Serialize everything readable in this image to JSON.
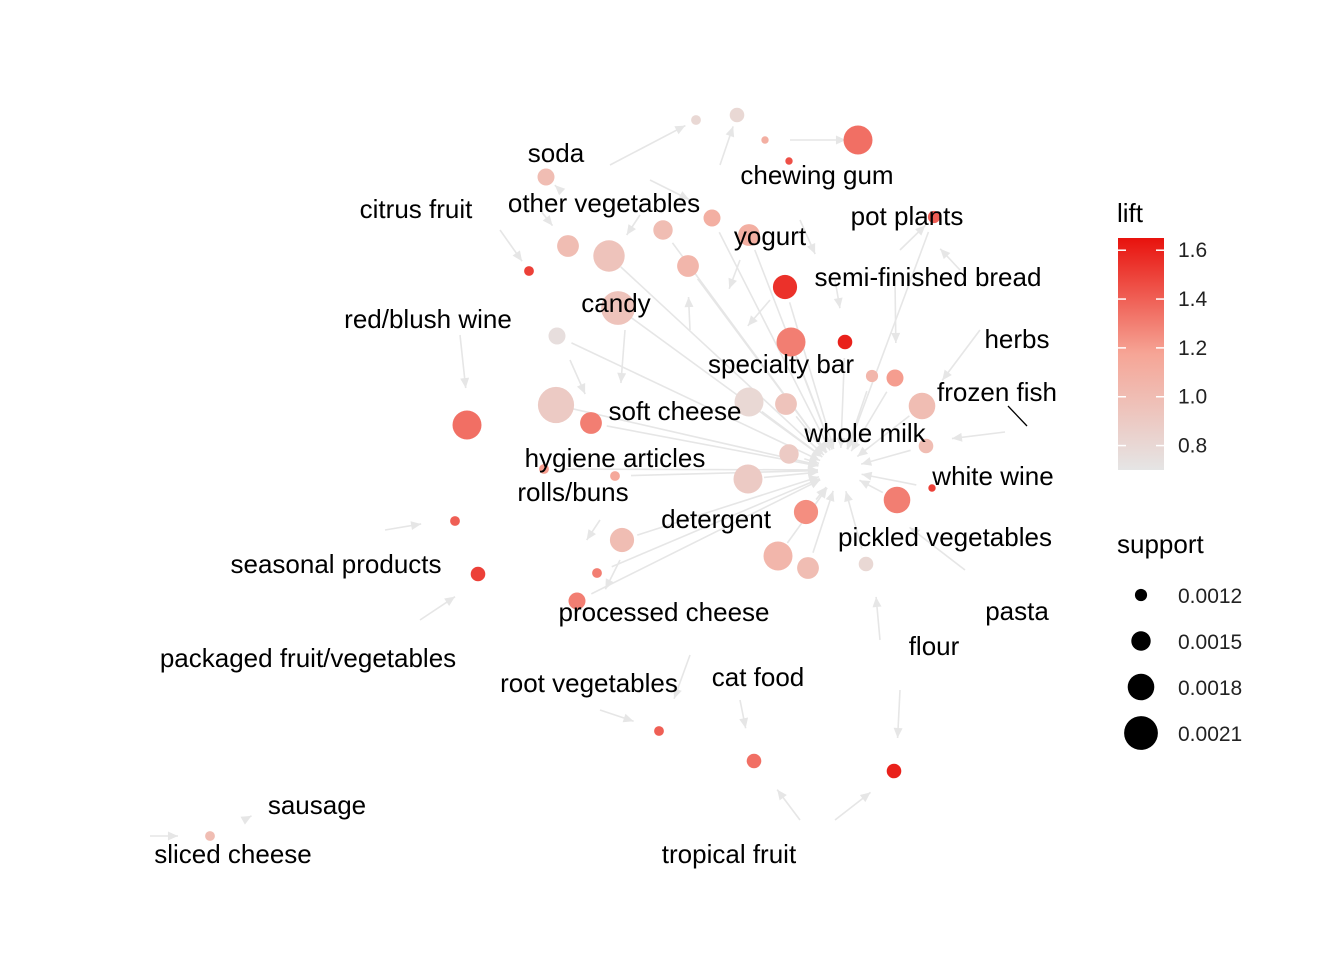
{
  "colors": {
    "lift_high": "#e8120d",
    "lift_mid": "#f6a596",
    "lift_low": "#e5e5e5",
    "edge": "#e6e6e6",
    "support_key": "#000000"
  },
  "graph": {
    "layout": "stress",
    "edge_style": "arrows",
    "item_labels": [
      "soda",
      "chewing gum",
      "citrus fruit",
      "other vegetables",
      "pot plants",
      "yogurt",
      "semi-finished bread",
      "candy",
      "red/blush wine",
      "herbs",
      "specialty bar",
      "frozen fish",
      "soft cheese",
      "whole milk",
      "hygiene articles",
      "white wine",
      "rolls/buns",
      "detergent",
      "pickled vegetables",
      "seasonal products",
      "processed cheese",
      "pasta",
      "flour",
      "packaged fruit/vegetables",
      "root vegetables",
      "cat food",
      "sausage",
      "sliced cheese",
      "tropical fruit"
    ],
    "rule_nodes": [
      {
        "lift": 0.8,
        "support": 0.0011
      },
      {
        "lift": 0.8,
        "support": 0.0013
      },
      {
        "lift": 1.35,
        "support": 0.0019
      },
      {
        "lift": 1.0,
        "support": 0.0014
      },
      {
        "lift": 1.4,
        "support": 0.0012
      },
      {
        "lift": 1.1,
        "support": 0.0014
      },
      {
        "lift": 1.0,
        "support": 0.0015
      },
      {
        "lift": 1.0,
        "support": 0.0016
      },
      {
        "lift": 0.95,
        "support": 0.002
      },
      {
        "lift": 1.1,
        "support": 0.0016
      },
      {
        "lift": 1.05,
        "support": 0.0016
      },
      {
        "lift": 1.5,
        "support": 0.0011
      },
      {
        "lift": 1.55,
        "support": 0.0017
      },
      {
        "lift": 0.95,
        "support": 0.0021
      },
      {
        "lift": 1.6,
        "support": 0.0013
      },
      {
        "lift": 1.3,
        "support": 0.0019
      },
      {
        "lift": 0.75,
        "support": 0.0014
      },
      {
        "lift": 1.2,
        "support": 0.0014
      },
      {
        "lift": 1.05,
        "support": 0.0012
      },
      {
        "lift": 1.0,
        "support": 0.0018
      },
      {
        "lift": 0.9,
        "support": 0.0022
      },
      {
        "lift": 0.8,
        "support": 0.0019
      },
      {
        "lift": 0.95,
        "support": 0.0016
      },
      {
        "lift": 1.3,
        "support": 0.0016
      },
      {
        "lift": 1.0,
        "support": 0.0013
      },
      {
        "lift": 0.9,
        "support": 0.0015
      },
      {
        "lift": 1.15,
        "support": 0.0011
      },
      {
        "lift": 0.9,
        "support": 0.0019
      },
      {
        "lift": 1.2,
        "support": 0.0011
      },
      {
        "lift": 1.3,
        "support": 0.0018
      },
      {
        "lift": 1.4,
        "support": 0.0011
      },
      {
        "lift": 1.25,
        "support": 0.0017
      },
      {
        "lift": 1.35,
        "support": 0.0019
      },
      {
        "lift": 1.0,
        "support": 0.0017
      },
      {
        "lift": 1.05,
        "support": 0.0019
      },
      {
        "lift": 1.0,
        "support": 0.0016
      },
      {
        "lift": 0.8,
        "support": 0.0013
      },
      {
        "lift": 1.3,
        "support": 0.0011
      },
      {
        "lift": 1.3,
        "support": 0.0014
      },
      {
        "lift": 1.5,
        "support": 0.0013
      },
      {
        "lift": 1.4,
        "support": 0.0011
      },
      {
        "lift": 1.6,
        "support": 0.0013
      },
      {
        "lift": 1.35,
        "support": 0.0013
      },
      {
        "lift": 1.0,
        "support": 0.0011
      },
      {
        "lift": 1.45,
        "support": 0.001
      },
      {
        "lift": 1.1,
        "support": 0.001
      },
      {
        "lift": 1.5,
        "support": 0.001
      }
    ]
  },
  "legend": {
    "lift": {
      "title": "lift",
      "ticks": [
        "1.6",
        "1.4",
        "1.2",
        "1.0",
        "0.8"
      ],
      "tick_values": [
        1.6,
        1.4,
        1.2,
        1.0,
        0.8
      ],
      "range": [
        0.7,
        1.65
      ]
    },
    "support": {
      "title": "support",
      "entries": [
        {
          "label": "0.0012",
          "value": 0.0012
        },
        {
          "label": "0.0015",
          "value": 0.0015
        },
        {
          "label": "0.0018",
          "value": 0.0018
        },
        {
          "label": "0.0021",
          "value": 0.0021
        }
      ]
    }
  }
}
